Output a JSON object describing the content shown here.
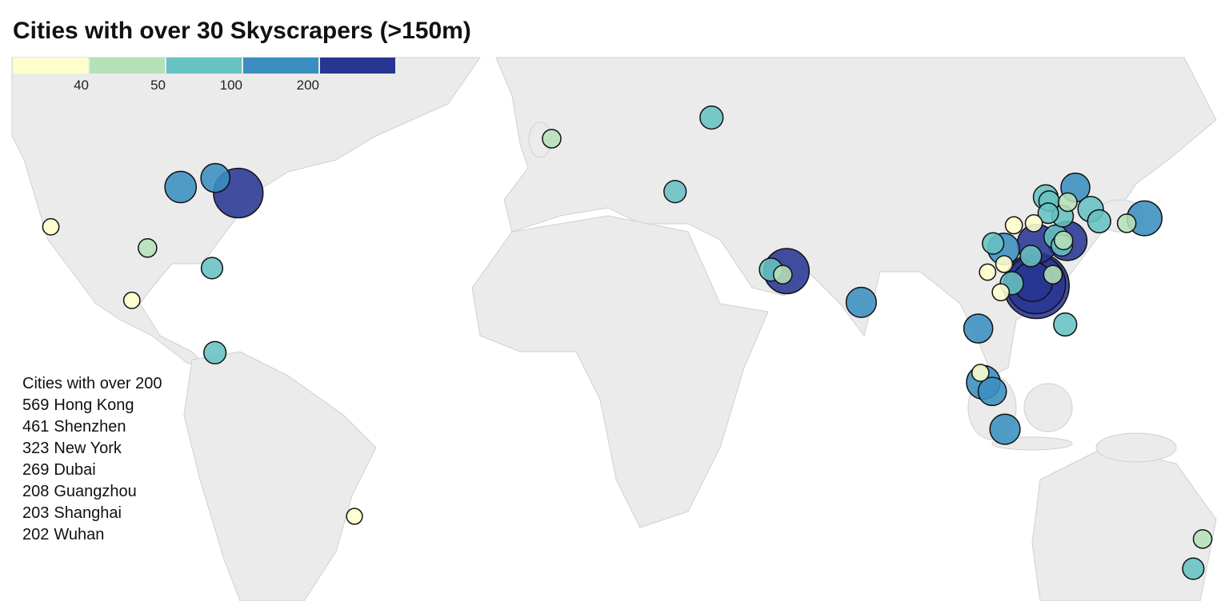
{
  "title": "Cities with over 30 Skyscrapers (>150m)",
  "legend": {
    "breaks": [
      40,
      50,
      100,
      200
    ],
    "colors": [
      "#ffffcc",
      "#b5e0b8",
      "#66c2c3",
      "#3a8ec0",
      "#283593"
    ]
  },
  "top_cities": {
    "heading": "Cities with over 200",
    "items": [
      {
        "count": 569,
        "name": "Hong Kong",
        "lon": 114.2,
        "lat": 22.3
      },
      {
        "count": 461,
        "name": "Shenzhen",
        "lon": 114.1,
        "lat": 22.6
      },
      {
        "count": 323,
        "name": "New York",
        "lon": -74.0,
        "lat": 40.7
      },
      {
        "count": 269,
        "name": "Dubai",
        "lon": 55.3,
        "lat": 25.2
      },
      {
        "count": 208,
        "name": "Guangzhou",
        "lon": 113.3,
        "lat": 23.1
      },
      {
        "count": 203,
        "name": "Shanghai",
        "lon": 121.5,
        "lat": 31.2
      },
      {
        "count": 202,
        "name": "Wuhan",
        "lon": 114.3,
        "lat": 30.6
      }
    ]
  },
  "points": [
    {
      "lon": -87.6,
      "lat": 41.9,
      "value": 130
    },
    {
      "lon": -79.4,
      "lat": 43.7,
      "value": 110
    },
    {
      "lon": -118.2,
      "lat": 34.0,
      "value": 35
    },
    {
      "lon": -95.4,
      "lat": 29.8,
      "value": 45
    },
    {
      "lon": -80.2,
      "lat": 25.8,
      "value": 60
    },
    {
      "lon": -99.1,
      "lat": 19.4,
      "value": 35
    },
    {
      "lon": -79.5,
      "lat": 9.0,
      "value": 65
    },
    {
      "lon": -46.6,
      "lat": -23.5,
      "value": 33
    },
    {
      "lon": -0.1,
      "lat": 51.5,
      "value": 45
    },
    {
      "lon": 37.6,
      "lat": 55.7,
      "value": 70
    },
    {
      "lon": 29.0,
      "lat": 41.0,
      "value": 65
    },
    {
      "lon": 51.6,
      "lat": 25.5,
      "value": 70
    },
    {
      "lon": 54.4,
      "lat": 24.5,
      "value": 45
    },
    {
      "lon": 72.9,
      "lat": 19.0,
      "value": 120
    },
    {
      "lon": 100.5,
      "lat": 13.8,
      "value": 110
    },
    {
      "lon": 101.7,
      "lat": 3.1,
      "value": 150
    },
    {
      "lon": 103.8,
      "lat": 1.3,
      "value": 105
    },
    {
      "lon": 101.0,
      "lat": 5.0,
      "value": 38
    },
    {
      "lon": 106.8,
      "lat": -6.2,
      "value": 120
    },
    {
      "lon": 121.0,
      "lat": 14.6,
      "value": 70
    },
    {
      "lon": 127.0,
      "lat": 37.5,
      "value": 85
    },
    {
      "lon": 129.0,
      "lat": 35.1,
      "value": 70
    },
    {
      "lon": 139.7,
      "lat": 35.7,
      "value": 160
    },
    {
      "lon": 135.5,
      "lat": 34.7,
      "value": 45
    },
    {
      "lon": 116.4,
      "lat": 39.9,
      "value": 80
    },
    {
      "lon": 123.4,
      "lat": 41.8,
      "value": 110
    },
    {
      "lon": 117.2,
      "lat": 39.1,
      "value": 55
    },
    {
      "lon": 121.6,
      "lat": 38.9,
      "value": 45
    },
    {
      "lon": 106.5,
      "lat": 29.6,
      "value": 130
    },
    {
      "lon": 104.0,
      "lat": 30.7,
      "value": 60
    },
    {
      "lon": 102.7,
      "lat": 25.0,
      "value": 35
    },
    {
      "lon": 108.4,
      "lat": 22.8,
      "value": 70
    },
    {
      "lon": 112.9,
      "lat": 28.2,
      "value": 60
    },
    {
      "lon": 118.8,
      "lat": 32.0,
      "value": 75
    },
    {
      "lon": 120.2,
      "lat": 30.3,
      "value": 60
    },
    {
      "lon": 120.6,
      "lat": 31.3,
      "value": 45
    },
    {
      "lon": 118.1,
      "lat": 24.5,
      "value": 45
    },
    {
      "lon": 113.6,
      "lat": 34.7,
      "value": 38
    },
    {
      "lon": 108.9,
      "lat": 34.3,
      "value": 38
    },
    {
      "lon": 120.4,
      "lat": 36.1,
      "value": 60
    },
    {
      "lon": 117.0,
      "lat": 36.7,
      "value": 55
    },
    {
      "lon": 106.6,
      "lat": 26.6,
      "value": 37
    },
    {
      "lon": 105.8,
      "lat": 21.0,
      "value": 38
    },
    {
      "lon": 151.2,
      "lat": -33.9,
      "value": 60
    },
    {
      "lon": 153.4,
      "lat": -28.0,
      "value": 45
    }
  ]
}
